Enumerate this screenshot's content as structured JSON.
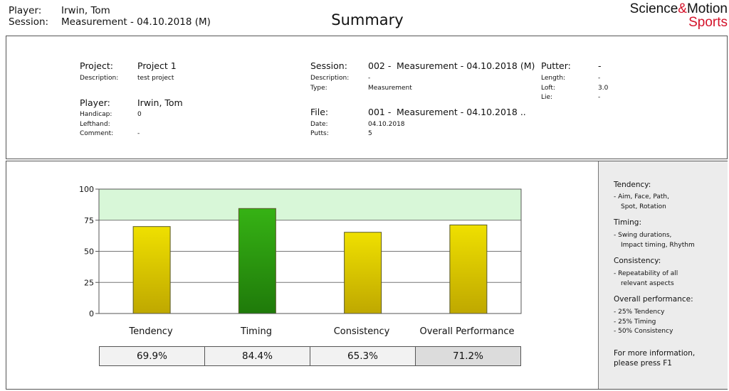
{
  "header": {
    "player_label": "Player:",
    "player_value": "Irwin, Tom",
    "session_label": "Session:",
    "session_value": "Measurement - 04.10.2018 (M)",
    "title": "Summary",
    "logo_science": "Science",
    "logo_amp": "&",
    "logo_motion": "Motion",
    "logo_sports": "Sports",
    "logo_color": "#d4122a"
  },
  "info": {
    "project_label": "Project:",
    "project_value": "Project 1",
    "description_label": "Description:",
    "description_value": "test project",
    "player_label": "Player:",
    "player_value": "Irwin, Tom",
    "handicap_label": "Handicap:",
    "handicap_value": "0",
    "lefthand_label": "Lefthand:",
    "lefthand_value": "",
    "comment_label": "Comment:",
    "comment_value": "-",
    "session_label": "Session:",
    "session_number": "002 -",
    "session_value": "Measurement - 04.10.2018 (M)",
    "session_desc_label": "Description:",
    "session_desc_value": "-",
    "type_label": "Type:",
    "type_value": "Measurement",
    "file_label": "File:",
    "file_number": "001 -",
    "file_value": "Measurement - 04.10.2018 ..",
    "date_label": "Date:",
    "date_value": "04.10.2018",
    "putts_label": "Putts:",
    "putts_value": "5",
    "putter_label": "Putter:",
    "putter_value": "-",
    "length_label": "Length:",
    "length_value": "-",
    "loft_label": "Loft:",
    "loft_value": "3.0",
    "lie_label": "Lie:",
    "lie_value": "-"
  },
  "sidebar": {
    "tendency_title": "Tendency:",
    "tendency_text": [
      "- Aim, Face, Path,",
      "  Spot, Rotation"
    ],
    "timing_title": "Timing:",
    "timing_text": [
      "- Swing durations,",
      "  Impact timing, Rhythm"
    ],
    "consistency_title": "Consistency:",
    "consistency_text": [
      "- Repeatability of all",
      "  relevant aspects"
    ],
    "overall_title": "Overall performance:",
    "overall_text": [
      "- 25% Tendency",
      "- 25% Timing",
      "- 50% Consistency"
    ],
    "more_info": [
      "For more information,",
      "please press F1"
    ]
  },
  "chart_data": {
    "type": "bar",
    "categories": [
      "Tendency",
      "Timing",
      "Consistency",
      "Overall Performance"
    ],
    "values": [
      69.9,
      84.4,
      65.3,
      71.2
    ],
    "value_labels": [
      "69.9%",
      "84.4%",
      "65.3%",
      "71.2%"
    ],
    "ylim": [
      0,
      100
    ],
    "yticks": [
      "0",
      "25",
      "50",
      "75",
      "100"
    ],
    "target_band": [
      75,
      100
    ],
    "target_band_color": "#d8f7d8",
    "bar_colors": [
      "#d8c800",
      "#2e9a10",
      "#d8c800",
      "#d8c800"
    ],
    "highlight_value_box": 3
  }
}
